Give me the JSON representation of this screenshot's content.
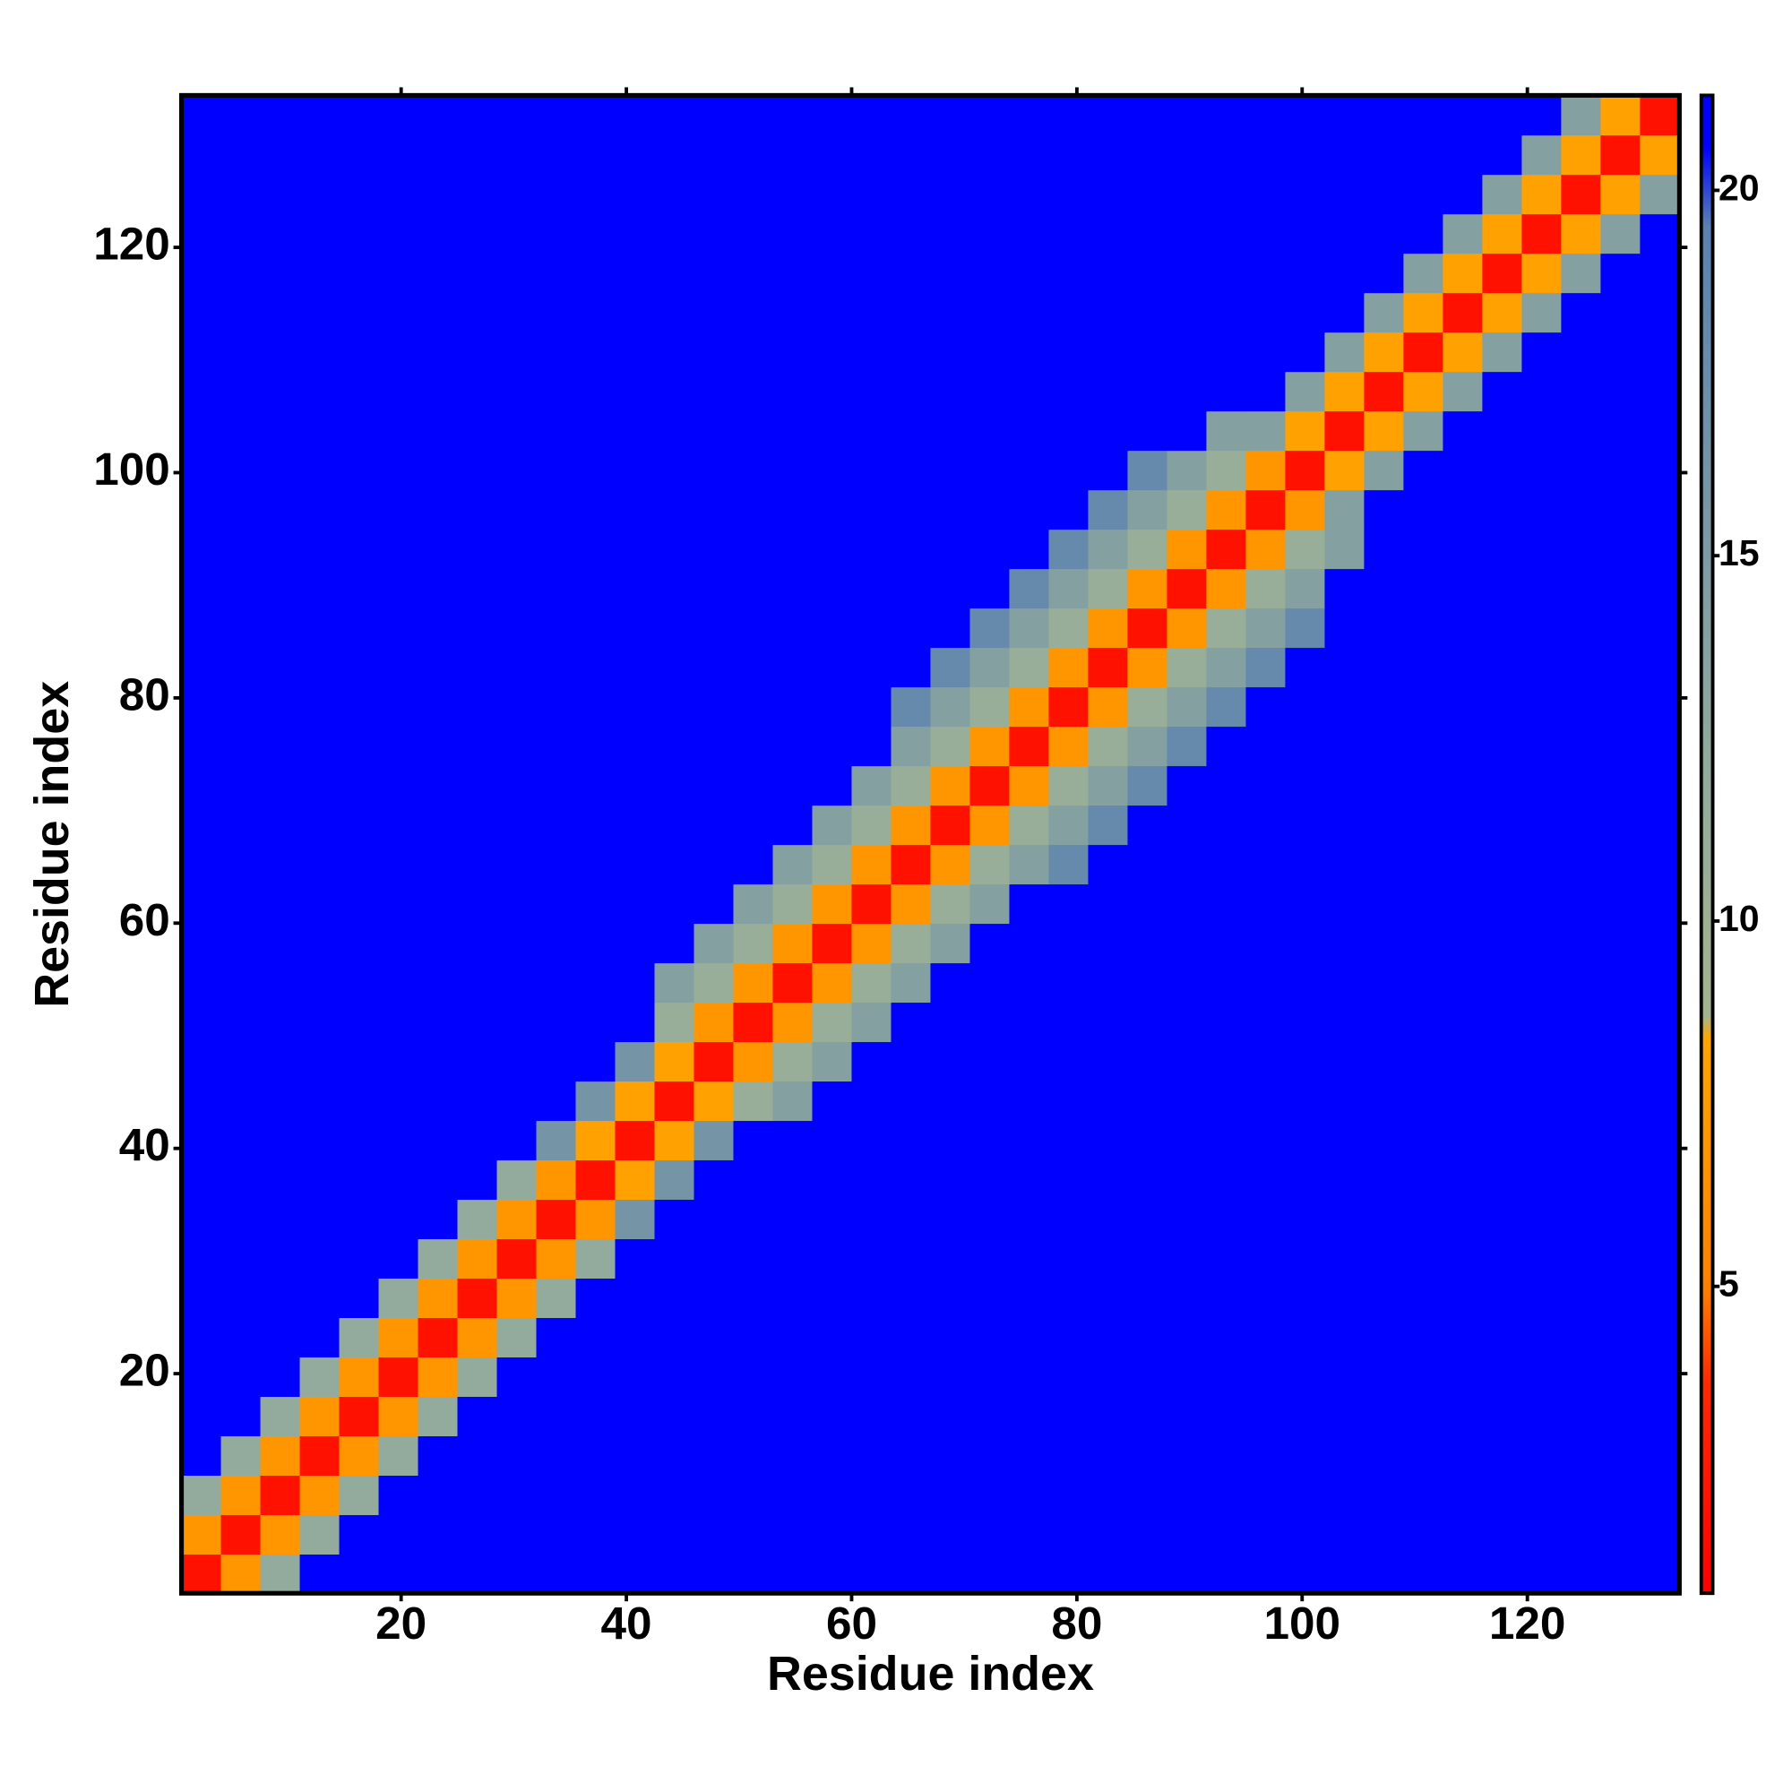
{
  "chart_data": {
    "type": "heatmap",
    "xlabel": "Residue index",
    "ylabel": "Residue index",
    "xlim": [
      0.5,
      133.5
    ],
    "ylim": [
      0.5,
      133.5
    ],
    "xticks": [
      20,
      40,
      60,
      80,
      100,
      120
    ],
    "yticks": [
      20,
      40,
      60,
      80,
      100,
      120
    ],
    "x_bins": [
      0.5,
      4,
      7.5,
      11,
      14.5,
      18,
      21.5,
      25,
      28.5,
      32,
      35.5,
      39,
      42.5,
      46,
      49.5,
      53,
      56.5,
      60,
      63.5,
      67,
      70.5,
      74,
      77.5,
      81,
      84.5,
      88,
      91.5,
      95,
      98.5,
      102,
      105.5,
      109,
      112.5,
      116,
      119.5,
      123,
      126.5,
      130,
      133.5
    ],
    "y_bins": [
      0.5,
      4,
      7.5,
      11,
      14.5,
      18,
      21.5,
      25,
      28.5,
      32,
      35.5,
      39,
      42.5,
      46,
      49.5,
      53,
      56.5,
      60,
      63.5,
      67,
      70.5,
      74,
      77.5,
      81,
      84.5,
      88,
      91.5,
      95,
      98.5,
      102,
      105.5,
      109,
      112.5,
      116,
      119.5,
      123,
      126.5,
      130,
      133.5
    ],
    "clim": [
      0.8,
      21.3
    ],
    "cticks": [
      5,
      10,
      15,
      20
    ],
    "colorscale": [
      [
        0.8,
        "#ff0000"
      ],
      [
        3.7,
        "#ff2a00"
      ],
      [
        5,
        "#ff8000"
      ],
      [
        8.4,
        "#ffa500"
      ],
      [
        8.7,
        "#a3b48f"
      ],
      [
        12,
        "#93ab9c"
      ],
      [
        19.5,
        "#5a82b0"
      ],
      [
        20.6,
        "#0000ff"
      ]
    ],
    "z": [
      [
        2,
        7,
        12,
        21,
        21,
        21,
        21,
        21,
        21,
        21,
        21,
        21,
        21,
        21,
        21,
        21,
        21,
        21,
        21,
        21,
        21,
        21,
        21,
        21,
        21,
        21,
        21,
        21,
        21,
        21,
        21,
        21,
        21,
        21,
        21,
        21,
        21,
        21
      ],
      [
        7,
        2,
        7,
        12,
        21,
        21,
        21,
        21,
        21,
        21,
        21,
        21,
        21,
        21,
        21,
        21,
        21,
        21,
        21,
        21,
        21,
        21,
        21,
        21,
        21,
        21,
        21,
        21,
        21,
        21,
        21,
        21,
        21,
        21,
        21,
        21,
        21,
        21
      ],
      [
        12,
        7,
        2,
        7,
        12,
        21,
        21,
        21,
        21,
        21,
        21,
        21,
        21,
        21,
        21,
        21,
        21,
        21,
        21,
        21,
        21,
        21,
        21,
        21,
        21,
        21,
        21,
        21,
        21,
        21,
        21,
        21,
        21,
        21,
        21,
        21,
        21,
        21
      ],
      [
        21,
        12,
        7,
        2,
        7,
        12,
        21,
        21,
        21,
        21,
        21,
        21,
        21,
        21,
        21,
        21,
        21,
        21,
        21,
        21,
        21,
        21,
        21,
        21,
        21,
        21,
        21,
        21,
        21,
        21,
        21,
        21,
        21,
        21,
        21,
        21,
        21,
        21
      ],
      [
        21,
        21,
        12,
        7,
        2,
        7,
        12,
        21,
        21,
        21,
        21,
        21,
        21,
        21,
        21,
        21,
        21,
        21,
        21,
        21,
        21,
        21,
        21,
        21,
        21,
        21,
        21,
        21,
        21,
        21,
        21,
        21,
        21,
        21,
        21,
        21,
        21,
        21
      ],
      [
        21,
        21,
        21,
        12,
        7,
        2,
        7,
        12,
        21,
        21,
        21,
        21,
        21,
        21,
        21,
        21,
        21,
        21,
        21,
        21,
        21,
        21,
        21,
        21,
        21,
        21,
        21,
        21,
        21,
        21,
        21,
        21,
        21,
        21,
        21,
        21,
        21,
        21
      ],
      [
        21,
        21,
        21,
        21,
        12,
        7,
        2,
        7,
        12,
        21,
        21,
        21,
        21,
        21,
        21,
        21,
        21,
        21,
        21,
        21,
        21,
        21,
        21,
        21,
        21,
        21,
        21,
        21,
        21,
        21,
        21,
        21,
        21,
        21,
        21,
        21,
        21,
        21
      ],
      [
        21,
        21,
        21,
        21,
        21,
        12,
        7,
        2,
        7,
        12,
        21,
        21,
        21,
        21,
        21,
        21,
        21,
        21,
        21,
        21,
        21,
        21,
        21,
        21,
        21,
        21,
        21,
        21,
        21,
        21,
        21,
        21,
        21,
        21,
        21,
        21,
        21,
        21
      ],
      [
        21,
        21,
        21,
        21,
        21,
        21,
        12,
        7,
        2,
        7,
        12,
        21,
        21,
        21,
        21,
        21,
        21,
        21,
        21,
        21,
        21,
        21,
        21,
        21,
        21,
        21,
        21,
        21,
        21,
        21,
        21,
        21,
        21,
        21,
        21,
        21,
        21,
        21
      ],
      [
        21,
        21,
        21,
        21,
        21,
        21,
        21,
        12,
        7,
        2,
        7,
        16,
        21,
        21,
        21,
        21,
        21,
        21,
        21,
        21,
        21,
        21,
        21,
        21,
        21,
        21,
        21,
        21,
        21,
        21,
        21,
        21,
        21,
        21,
        21,
        21,
        21,
        21
      ],
      [
        21,
        21,
        21,
        21,
        21,
        21,
        21,
        21,
        12,
        7,
        2,
        8,
        16,
        21,
        21,
        21,
        21,
        21,
        21,
        21,
        21,
        21,
        21,
        21,
        21,
        21,
        21,
        21,
        21,
        21,
        21,
        21,
        21,
        21,
        21,
        21,
        21,
        21
      ],
      [
        21,
        21,
        21,
        21,
        21,
        21,
        21,
        21,
        21,
        16,
        8,
        2,
        8,
        16,
        21,
        21,
        21,
        21,
        21,
        21,
        21,
        21,
        21,
        21,
        21,
        21,
        21,
        21,
        21,
        21,
        21,
        21,
        21,
        21,
        21,
        21,
        21,
        21
      ],
      [
        21,
        21,
        21,
        21,
        21,
        21,
        21,
        21,
        21,
        21,
        16,
        8,
        2,
        8,
        11,
        14,
        21,
        21,
        21,
        21,
        21,
        21,
        21,
        21,
        21,
        21,
        21,
        21,
        21,
        21,
        21,
        21,
        21,
        21,
        21,
        21,
        21,
        21
      ],
      [
        21,
        21,
        21,
        21,
        21,
        21,
        21,
        21,
        21,
        21,
        21,
        16,
        8,
        2,
        7,
        11,
        14,
        21,
        21,
        21,
        21,
        21,
        21,
        21,
        21,
        21,
        21,
        21,
        21,
        21,
        21,
        21,
        21,
        21,
        21,
        21,
        21,
        21
      ],
      [
        21,
        21,
        21,
        21,
        21,
        21,
        21,
        21,
        21,
        21,
        21,
        21,
        11,
        7,
        2,
        7,
        11,
        14,
        21,
        21,
        21,
        21,
        21,
        21,
        21,
        21,
        21,
        21,
        21,
        21,
        21,
        21,
        21,
        21,
        21,
        21,
        21,
        21
      ],
      [
        21,
        21,
        21,
        21,
        21,
        21,
        21,
        21,
        21,
        21,
        21,
        21,
        14,
        11,
        7,
        2,
        7,
        11,
        14,
        21,
        21,
        21,
        21,
        21,
        21,
        21,
        21,
        21,
        21,
        21,
        21,
        21,
        21,
        21,
        21,
        21,
        21,
        21
      ],
      [
        21,
        21,
        21,
        21,
        21,
        21,
        21,
        21,
        21,
        21,
        21,
        21,
        21,
        14,
        11,
        7,
        2,
        7,
        11,
        14,
        21,
        21,
        21,
        21,
        21,
        21,
        21,
        21,
        21,
        21,
        21,
        21,
        21,
        21,
        21,
        21,
        21,
        21
      ],
      [
        21,
        21,
        21,
        21,
        21,
        21,
        21,
        21,
        21,
        21,
        21,
        21,
        21,
        21,
        14,
        11,
        7,
        2,
        7,
        11,
        14,
        21,
        21,
        21,
        21,
        21,
        21,
        21,
        21,
        21,
        21,
        21,
        21,
        21,
        21,
        21,
        21,
        21
      ],
      [
        21,
        21,
        21,
        21,
        21,
        21,
        21,
        21,
        21,
        21,
        21,
        21,
        21,
        21,
        21,
        14,
        11,
        7,
        2,
        7,
        11,
        14,
        18,
        21,
        21,
        21,
        21,
        21,
        21,
        21,
        21,
        21,
        21,
        21,
        21,
        21,
        21,
        21
      ],
      [
        21,
        21,
        21,
        21,
        21,
        21,
        21,
        21,
        21,
        21,
        21,
        21,
        21,
        21,
        21,
        21,
        14,
        11,
        7,
        2,
        7,
        11,
        14,
        18,
        21,
        21,
        21,
        21,
        21,
        21,
        21,
        21,
        21,
        21,
        21,
        21,
        21,
        21
      ],
      [
        21,
        21,
        21,
        21,
        21,
        21,
        21,
        21,
        21,
        21,
        21,
        21,
        21,
        21,
        21,
        21,
        21,
        14,
        11,
        7,
        2,
        7,
        11,
        14,
        18,
        21,
        21,
        21,
        21,
        21,
        21,
        21,
        21,
        21,
        21,
        21,
        21,
        21
      ],
      [
        21,
        21,
        21,
        21,
        21,
        21,
        21,
        21,
        21,
        21,
        21,
        21,
        21,
        21,
        21,
        21,
        21,
        21,
        14,
        11,
        7,
        2,
        7,
        11,
        14,
        18,
        21,
        21,
        21,
        21,
        21,
        21,
        21,
        21,
        21,
        21,
        21,
        21
      ],
      [
        21,
        21,
        21,
        21,
        21,
        21,
        21,
        21,
        21,
        21,
        21,
        21,
        21,
        21,
        21,
        21,
        21,
        21,
        18,
        14,
        11,
        7,
        2,
        7,
        11,
        14,
        18,
        21,
        21,
        21,
        21,
        21,
        21,
        21,
        21,
        21,
        21,
        21
      ],
      [
        21,
        21,
        21,
        21,
        21,
        21,
        21,
        21,
        21,
        21,
        21,
        21,
        21,
        21,
        21,
        21,
        21,
        21,
        21,
        18,
        14,
        11,
        7,
        2,
        7,
        11,
        14,
        18,
        21,
        21,
        21,
        21,
        21,
        21,
        21,
        21,
        21,
        21
      ],
      [
        21,
        21,
        21,
        21,
        21,
        21,
        21,
        21,
        21,
        21,
        21,
        21,
        21,
        21,
        21,
        21,
        21,
        21,
        21,
        21,
        18,
        14,
        11,
        7,
        2,
        7,
        11,
        14,
        18,
        21,
        21,
        21,
        21,
        21,
        21,
        21,
        21,
        21
      ],
      [
        21,
        21,
        21,
        21,
        21,
        21,
        21,
        21,
        21,
        21,
        21,
        21,
        21,
        21,
        21,
        21,
        21,
        21,
        21,
        21,
        21,
        18,
        14,
        11,
        7,
        2,
        7,
        11,
        14,
        21,
        21,
        21,
        21,
        21,
        21,
        21,
        21,
        21
      ],
      [
        21,
        21,
        21,
        21,
        21,
        21,
        21,
        21,
        21,
        21,
        21,
        21,
        21,
        21,
        21,
        21,
        21,
        21,
        21,
        21,
        21,
        21,
        18,
        14,
        11,
        7,
        2,
        7,
        11,
        14,
        21,
        21,
        21,
        21,
        21,
        21,
        21,
        21
      ],
      [
        21,
        21,
        21,
        21,
        21,
        21,
        21,
        21,
        21,
        21,
        21,
        21,
        21,
        21,
        21,
        21,
        21,
        21,
        21,
        21,
        21,
        21,
        21,
        18,
        14,
        11,
        7,
        2,
        7,
        14,
        21,
        21,
        21,
        21,
        21,
        21,
        21,
        21
      ],
      [
        21,
        21,
        21,
        21,
        21,
        21,
        21,
        21,
        21,
        21,
        21,
        21,
        21,
        21,
        21,
        21,
        21,
        21,
        21,
        21,
        21,
        21,
        21,
        21,
        18,
        14,
        11,
        7,
        2,
        8,
        14,
        21,
        21,
        21,
        21,
        21,
        21,
        21
      ],
      [
        21,
        21,
        21,
        21,
        21,
        21,
        21,
        21,
        21,
        21,
        21,
        21,
        21,
        21,
        21,
        21,
        21,
        21,
        21,
        21,
        21,
        21,
        21,
        21,
        21,
        21,
        14,
        14,
        8,
        2,
        8,
        14,
        21,
        21,
        21,
        21,
        21,
        21
      ],
      [
        21,
        21,
        21,
        21,
        21,
        21,
        21,
        21,
        21,
        21,
        21,
        21,
        21,
        21,
        21,
        21,
        21,
        21,
        21,
        21,
        21,
        21,
        21,
        21,
        21,
        21,
        21,
        21,
        14,
        8,
        2,
        8,
        14,
        21,
        21,
        21,
        21,
        21
      ],
      [
        21,
        21,
        21,
        21,
        21,
        21,
        21,
        21,
        21,
        21,
        21,
        21,
        21,
        21,
        21,
        21,
        21,
        21,
        21,
        21,
        21,
        21,
        21,
        21,
        21,
        21,
        21,
        21,
        21,
        14,
        8,
        2,
        8,
        14,
        21,
        21,
        21,
        21
      ],
      [
        21,
        21,
        21,
        21,
        21,
        21,
        21,
        21,
        21,
        21,
        21,
        21,
        21,
        21,
        21,
        21,
        21,
        21,
        21,
        21,
        21,
        21,
        21,
        21,
        21,
        21,
        21,
        21,
        21,
        21,
        14,
        8,
        2,
        8,
        14,
        21,
        21,
        21
      ],
      [
        21,
        21,
        21,
        21,
        21,
        21,
        21,
        21,
        21,
        21,
        21,
        21,
        21,
        21,
        21,
        21,
        21,
        21,
        21,
        21,
        21,
        21,
        21,
        21,
        21,
        21,
        21,
        21,
        21,
        21,
        21,
        14,
        8,
        2,
        8,
        14,
        21,
        21
      ],
      [
        21,
        21,
        21,
        21,
        21,
        21,
        21,
        21,
        21,
        21,
        21,
        21,
        21,
        21,
        21,
        21,
        21,
        21,
        21,
        21,
        21,
        21,
        21,
        21,
        21,
        21,
        21,
        21,
        21,
        21,
        21,
        21,
        14,
        8,
        2,
        8,
        14,
        21
      ],
      [
        21,
        21,
        21,
        21,
        21,
        21,
        21,
        21,
        21,
        21,
        21,
        21,
        21,
        21,
        21,
        21,
        21,
        21,
        21,
        21,
        21,
        21,
        21,
        21,
        21,
        21,
        21,
        21,
        21,
        21,
        21,
        21,
        21,
        14,
        8,
        2,
        8,
        14
      ],
      [
        21,
        21,
        21,
        21,
        21,
        21,
        21,
        21,
        21,
        21,
        21,
        21,
        21,
        21,
        21,
        21,
        21,
        21,
        21,
        21,
        21,
        21,
        21,
        21,
        21,
        21,
        21,
        21,
        21,
        21,
        21,
        21,
        21,
        21,
        14,
        8,
        2,
        8
      ],
      [
        21,
        21,
        21,
        21,
        21,
        21,
        21,
        21,
        21,
        21,
        21,
        21,
        21,
        21,
        21,
        21,
        21,
        21,
        21,
        21,
        21,
        21,
        21,
        21,
        21,
        21,
        21,
        21,
        21,
        21,
        21,
        21,
        21,
        21,
        21,
        14,
        8,
        2
      ]
    ]
  }
}
